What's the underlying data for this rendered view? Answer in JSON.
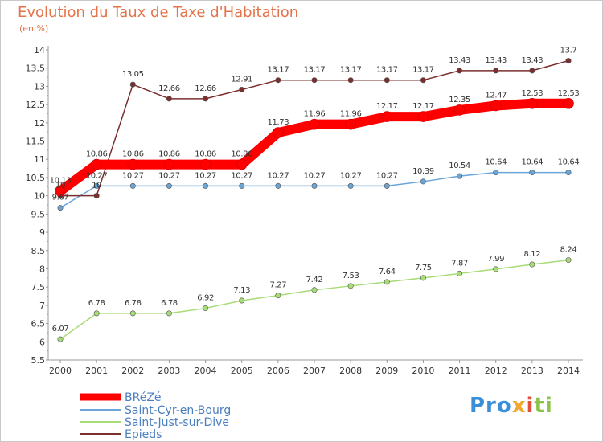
{
  "chart_data": {
    "type": "line",
    "title": "Evolution du Taux de Taxe d'Habitation",
    "subtitle": "(en %)",
    "x": [
      "2000",
      "2001",
      "2002",
      "2003",
      "2004",
      "2005",
      "2006",
      "2007",
      "2008",
      "2009",
      "2010",
      "2011",
      "2012",
      "2013",
      "2014"
    ],
    "ylim": [
      5.5,
      14
    ],
    "yticks": [
      "5.5",
      "6",
      "6.5",
      "7",
      "7.5",
      "8",
      "8.5",
      "9",
      "9.5",
      "10",
      "10.5",
      "11",
      "11.5",
      "12",
      "12.5",
      "13",
      "13.5",
      "14"
    ],
    "grid": false,
    "legend_position": "bottom-left",
    "series": [
      {
        "name": "BRéZé",
        "color": "#ff0000",
        "values": [
          10.13,
          10.86,
          10.86,
          10.86,
          10.86,
          10.86,
          11.73,
          11.96,
          11.96,
          12.17,
          12.17,
          12.35,
          12.47,
          12.53,
          12.53
        ],
        "labels": [
          "10.13",
          "10.86",
          "10.86",
          "10.86",
          "10.86",
          "10.86",
          "11.73",
          "11.96",
          "11.96",
          "12.17",
          "12.17",
          "12.35",
          "12.47",
          "12.53",
          "12.53"
        ]
      },
      {
        "name": "Saint-Cyr-en-Bourg",
        "color": "#6aa5d8",
        "values": [
          9.67,
          10.27,
          10.27,
          10.27,
          10.27,
          10.27,
          10.27,
          10.27,
          10.27,
          10.27,
          10.39,
          10.54,
          10.64,
          10.64,
          10.64
        ],
        "labels": [
          "9.67",
          "10.27",
          "10.27",
          "10.27",
          "10.27",
          "10.27",
          "10.27",
          "10.27",
          "10.27",
          "10.27",
          "10.39",
          "10.54",
          "10.64",
          "10.64",
          "10.64"
        ]
      },
      {
        "name": "Saint-Just-sur-Dive",
        "color": "#a8dc78",
        "values": [
          6.07,
          6.78,
          6.78,
          6.78,
          6.92,
          7.13,
          7.27,
          7.42,
          7.53,
          7.64,
          7.75,
          7.87,
          7.99,
          8.12,
          8.24
        ],
        "labels": [
          "6.07",
          "6.78",
          "6.78",
          "6.78",
          "6.92",
          "7.13",
          "7.27",
          "7.42",
          "7.53",
          "7.64",
          "7.75",
          "7.87",
          "7.99",
          "8.12",
          "8.24"
        ]
      },
      {
        "name": "Epieds",
        "color": "#7b2e2e",
        "values": [
          10,
          10,
          13.05,
          12.66,
          12.66,
          12.91,
          13.17,
          13.17,
          13.17,
          13.17,
          13.17,
          13.43,
          13.43,
          13.43,
          13.7
        ],
        "labels": [
          "10",
          "10",
          "13.05",
          "12.66",
          "12.66",
          "12.91",
          "13.17",
          "13.17",
          "13.17",
          "13.17",
          "13.17",
          "13.43",
          "13.43",
          "13.43",
          "13.7"
        ]
      }
    ]
  },
  "brand": {
    "logo_parts": [
      "Pro",
      "x",
      "i",
      "ti"
    ]
  }
}
